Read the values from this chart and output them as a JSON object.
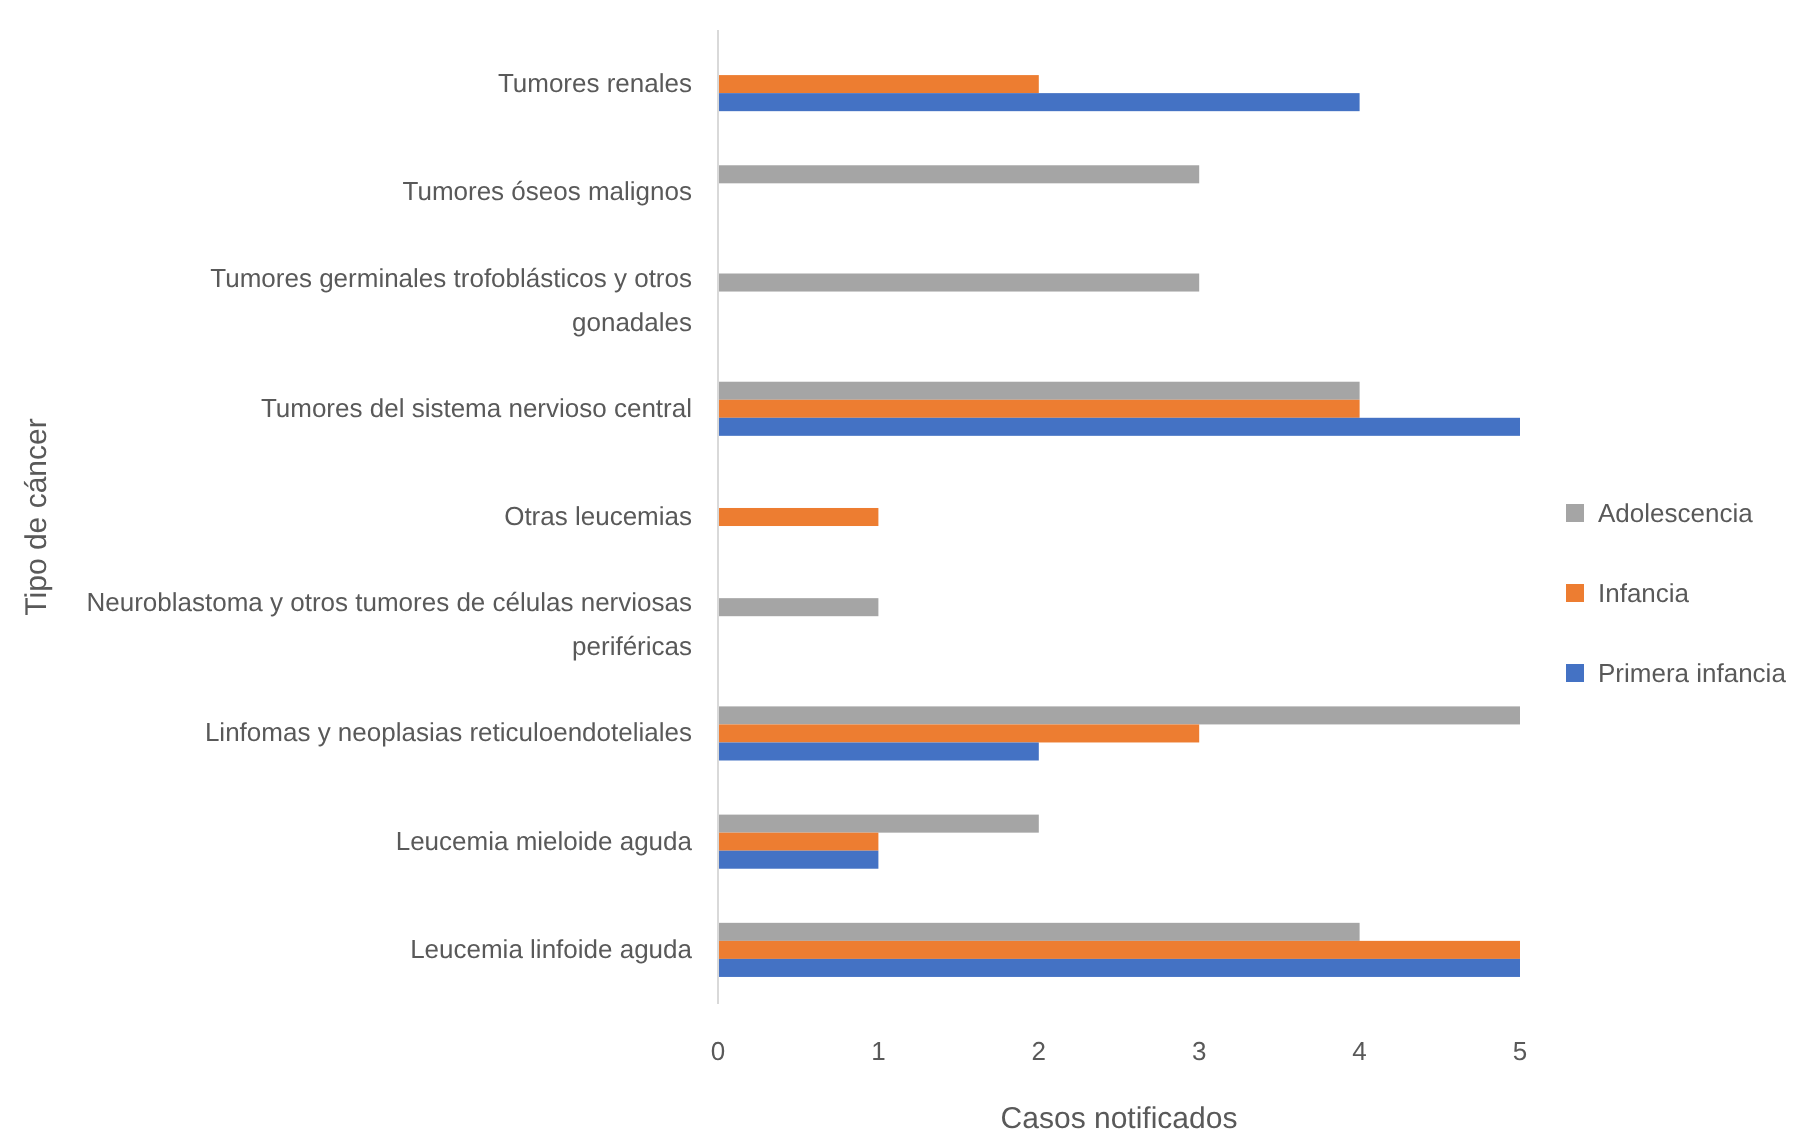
{
  "chart_data": {
    "type": "bar",
    "orientation": "horizontal",
    "xlabel": "Casos notificados",
    "ylabel": "Tipo de cáncer",
    "categories": [
      "Tumores renales",
      "Tumores óseos malignos",
      "Tumores germinales trofoblásticos y otros gonadales",
      "Tumores del sistema nervioso central",
      "Otras leucemias",
      "Neuroblastoma y otros tumores de células nerviosas periféricas",
      "Linfomas y neoplasias reticuloendoteliales",
      "Leucemia mieloide aguda",
      "Leucemia linfoide aguda"
    ],
    "series": [
      {
        "name": "Adolescencia",
        "color": "#a5a5a5",
        "values": [
          0,
          3,
          3,
          4,
          0,
          1,
          5,
          2,
          4
        ]
      },
      {
        "name": "Infancia",
        "color": "#ed7d31",
        "values": [
          2,
          0,
          0,
          4,
          1,
          0,
          3,
          1,
          5
        ]
      },
      {
        "name": "Primera infancia",
        "color": "#4472c4",
        "values": [
          4,
          0,
          0,
          5,
          0,
          0,
          2,
          1,
          5
        ]
      }
    ],
    "xlim": [
      0,
      5
    ],
    "xticks": [
      0,
      1,
      2,
      3,
      4,
      5
    ],
    "grid": false,
    "legend": "right"
  }
}
